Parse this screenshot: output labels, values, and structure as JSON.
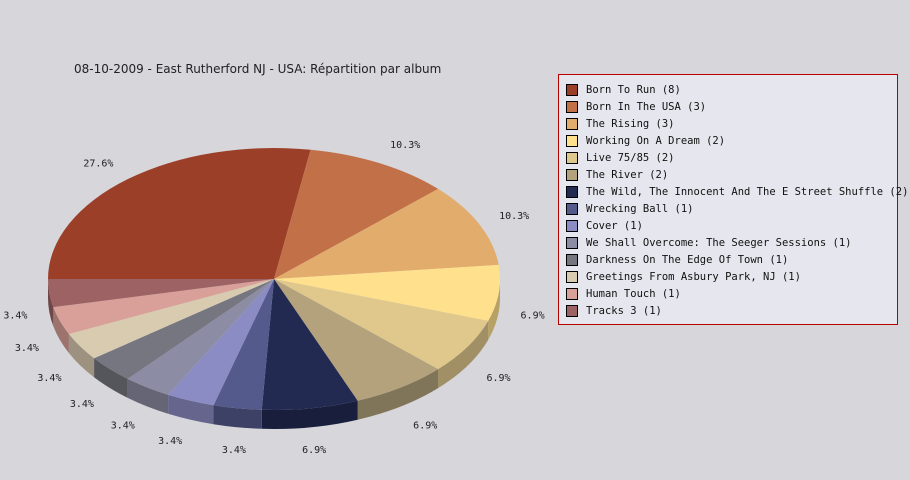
{
  "chart_data": {
    "type": "pie",
    "title": "08-10-2009 - East Rutherford NJ - USA:  Répartition par album",
    "categories": [
      "Born To Run (8)",
      "Born In The USA (3)",
      "The Rising (3)",
      "Working On A Dream (2)",
      "Live 75/85 (2)",
      "The River (2)",
      "The Wild, The Innocent And The E Street Shuffle (2)",
      "Wrecking Ball (1)",
      "Cover (1)",
      "We Shall Overcome: The Seeger Sessions (1)",
      "Darkness On The Edge Of Town (1)",
      "Greetings From Asbury Park, NJ (1)",
      "Human Touch (1)",
      "Tracks 3 (1)"
    ],
    "values": [
      8,
      3,
      3,
      2,
      2,
      2,
      2,
      1,
      1,
      1,
      1,
      1,
      1,
      1
    ],
    "percent_labels": [
      "27.6%",
      "10.3%",
      "10.3%",
      "6.9%",
      "6.9%",
      "6.9%",
      "6.9%",
      "3.4%",
      "3.4%",
      "3.4%",
      "3.4%",
      "3.4%",
      "3.4%",
      "3.4%"
    ],
    "colors": [
      "#9c3f28",
      "#c27048",
      "#e2ac6c",
      "#ffe08c",
      "#e0c88c",
      "#b3a27c",
      "#222a52",
      "#555a8c",
      "#8c8cc4",
      "#8c8ca4",
      "#767680",
      "#d8cbb0",
      "#d8a098",
      "#9c6264"
    ],
    "legend_position": "right"
  }
}
